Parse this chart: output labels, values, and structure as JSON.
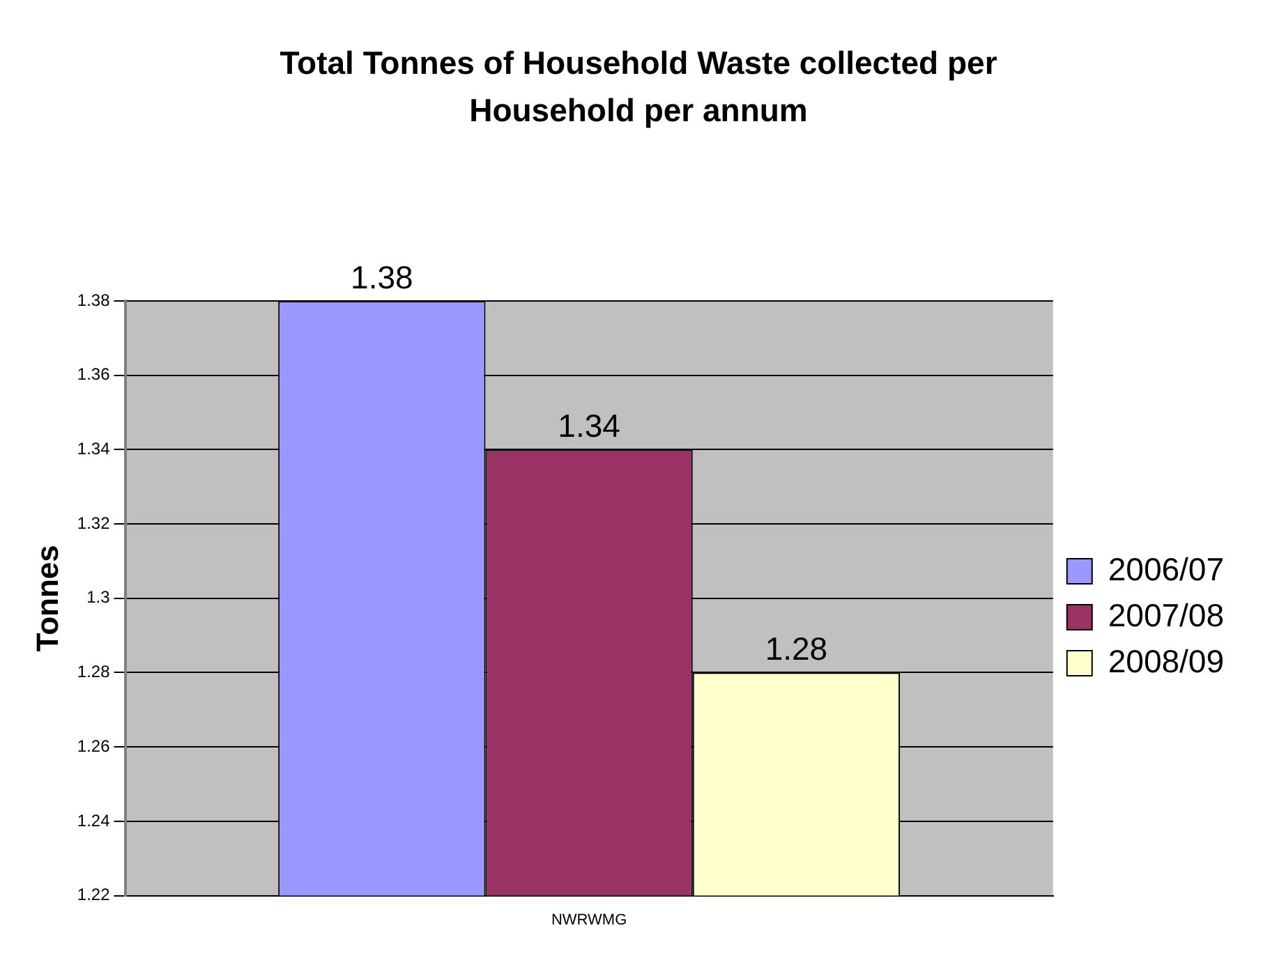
{
  "chart_data": {
    "type": "bar",
    "title": "Total Tonnes of Household Waste collected per Household per annum",
    "ylabel": "Tonnes",
    "categories": [
      "NWRWMG"
    ],
    "series": [
      {
        "name": "2006/07",
        "color": "#9999ff",
        "values": [
          1.38
        ]
      },
      {
        "name": "2007/08",
        "color": "#993366",
        "values": [
          1.34
        ]
      },
      {
        "name": "2008/09",
        "color": "#ffffcc",
        "values": [
          1.28
        ]
      }
    ],
    "ylim": [
      1.22,
      1.38
    ],
    "yticks": [
      1.22,
      1.24,
      1.26,
      1.28,
      1.3,
      1.32,
      1.34,
      1.36,
      1.38
    ],
    "grid": "y",
    "legend": "right",
    "data_labels": true
  }
}
